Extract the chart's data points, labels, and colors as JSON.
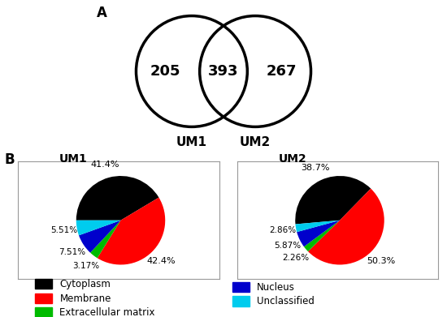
{
  "panel_A_label": "A",
  "panel_B_label": "B",
  "venn_left_value": "205",
  "venn_center_value": "393",
  "venn_right_value": "267",
  "venn_label_left": "UM1",
  "venn_label_right": "UM2",
  "um1_title": "UM1",
  "um2_title": "UM2",
  "um1_slices": [
    41.4,
    42.4,
    3.17,
    7.51,
    5.51
  ],
  "um2_slices": [
    38.7,
    50.3,
    2.26,
    5.87,
    2.86
  ],
  "um1_labels": [
    "41.4%",
    "42.4%",
    "3.17%",
    "7.51%",
    "5.51%"
  ],
  "um2_labels": [
    "38.7%",
    "50.3%",
    "2.26%",
    "5.87%",
    "2.86%"
  ],
  "slice_colors": [
    "#000000",
    "#ff0000",
    "#00bb00",
    "#0000cc",
    "#00ccee"
  ],
  "slice_names": [
    "Cytoplasm",
    "Membrane",
    "Extracellular matrix",
    "Nucleus",
    "Unclassified"
  ],
  "legend_colors": [
    "#000000",
    "#ff0000",
    "#00bb00",
    "#0000cc",
    "#00ccee"
  ],
  "background_color": "#ffffff"
}
